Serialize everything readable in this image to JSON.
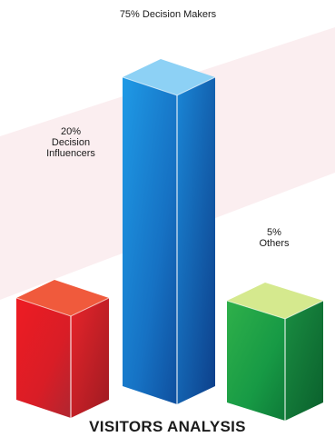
{
  "chart_data": {
    "type": "bar",
    "title": "VISITORS ANALYSIS",
    "categories": [
      "Decision Influencers",
      "Decision Makers",
      "Others"
    ],
    "values": [
      20,
      75,
      5
    ],
    "unit": "%",
    "data_labels": [
      {
        "pct": "20%",
        "line2": "Decision",
        "line3": "Influencers"
      },
      {
        "text": "75% Decision Makers"
      },
      {
        "pct": "5%",
        "line2": "Others"
      }
    ],
    "colors": [
      "#e31e24",
      "#1e7fd0",
      "#1f9a3c"
    ],
    "style": "3d-columns"
  }
}
